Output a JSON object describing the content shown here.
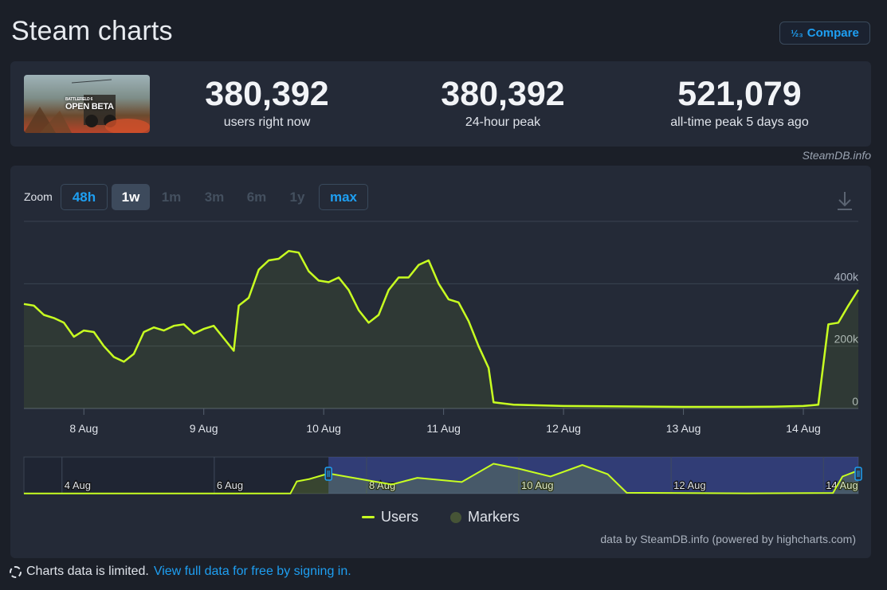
{
  "page": {
    "title": "Steam charts"
  },
  "compare": {
    "label": "Compare",
    "icon": "fraction-icon",
    "icon_glyph": "½₃"
  },
  "game": {
    "thumb_line1": "BATTLEFIELD 6",
    "thumb_line2": "OPEN BETA"
  },
  "stats": [
    {
      "value": "380,392",
      "label": "users right now"
    },
    {
      "value": "380,392",
      "label": "24-hour peak"
    },
    {
      "value": "521,079",
      "label": "all-time peak 5 days ago"
    }
  ],
  "source_credit": "SteamDB.info",
  "zoom": {
    "label": "Zoom",
    "options": [
      "48h",
      "1w",
      "1m",
      "3m",
      "6m",
      "1y",
      "max"
    ],
    "selected": "1w"
  },
  "chart_data": {
    "type": "area",
    "series": [
      {
        "name": "Users",
        "color": "#c8ff21",
        "points": [
          [
            "7 Aug 12:00",
            335000
          ],
          [
            "7 Aug 14:00",
            330000
          ],
          [
            "7 Aug 16:00",
            300000
          ],
          [
            "7 Aug 18:00",
            290000
          ],
          [
            "7 Aug 20:00",
            275000
          ],
          [
            "7 Aug 22:00",
            230000
          ],
          [
            "8 Aug 00:00",
            250000
          ],
          [
            "8 Aug 02:00",
            245000
          ],
          [
            "8 Aug 04:00",
            200000
          ],
          [
            "8 Aug 06:00",
            165000
          ],
          [
            "8 Aug 08:00",
            150000
          ],
          [
            "8 Aug 10:00",
            175000
          ],
          [
            "8 Aug 12:00",
            245000
          ],
          [
            "8 Aug 14:00",
            260000
          ],
          [
            "8 Aug 16:00",
            250000
          ],
          [
            "8 Aug 18:00",
            265000
          ],
          [
            "8 Aug 20:00",
            270000
          ],
          [
            "8 Aug 22:00",
            240000
          ],
          [
            "9 Aug 00:00",
            255000
          ],
          [
            "9 Aug 02:00",
            265000
          ],
          [
            "9 Aug 04:00",
            225000
          ],
          [
            "9 Aug 06:00",
            185000
          ],
          [
            "9 Aug 07:00",
            330000
          ],
          [
            "9 Aug 09:00",
            355000
          ],
          [
            "9 Aug 11:00",
            445000
          ],
          [
            "9 Aug 13:00",
            475000
          ],
          [
            "9 Aug 15:00",
            480000
          ],
          [
            "9 Aug 17:00",
            505000
          ],
          [
            "9 Aug 19:00",
            500000
          ],
          [
            "9 Aug 21:00",
            440000
          ],
          [
            "9 Aug 23:00",
            410000
          ],
          [
            "10 Aug 01:00",
            405000
          ],
          [
            "10 Aug 03:00",
            420000
          ],
          [
            "10 Aug 05:00",
            380000
          ],
          [
            "10 Aug 07:00",
            315000
          ],
          [
            "10 Aug 09:00",
            275000
          ],
          [
            "10 Aug 11:00",
            300000
          ],
          [
            "10 Aug 13:00",
            380000
          ],
          [
            "10 Aug 15:00",
            420000
          ],
          [
            "10 Aug 17:00",
            420000
          ],
          [
            "10 Aug 19:00",
            460000
          ],
          [
            "10 Aug 21:00",
            475000
          ],
          [
            "10 Aug 23:00",
            400000
          ],
          [
            "11 Aug 01:00",
            350000
          ],
          [
            "11 Aug 03:00",
            340000
          ],
          [
            "11 Aug 05:00",
            280000
          ],
          [
            "11 Aug 07:00",
            200000
          ],
          [
            "11 Aug 09:00",
            130000
          ],
          [
            "11 Aug 10:00",
            20000
          ],
          [
            "11 Aug 14:00",
            12000
          ],
          [
            "12 Aug 00:00",
            8000
          ],
          [
            "13 Aug 00:00",
            5000
          ],
          [
            "13 Aug 12:00",
            5000
          ],
          [
            "13 Aug 18:00",
            6000
          ],
          [
            "14 Aug 00:00",
            8000
          ],
          [
            "14 Aug 03:00",
            12000
          ],
          [
            "14 Aug 05:00",
            270000
          ],
          [
            "14 Aug 07:00",
            275000
          ],
          [
            "14 Aug 09:00",
            330000
          ],
          [
            "14 Aug 11:00",
            380392
          ]
        ]
      }
    ],
    "x_ticks": [
      "8 Aug",
      "9 Aug",
      "10 Aug",
      "11 Aug",
      "12 Aug",
      "13 Aug",
      "14 Aug"
    ],
    "y_ticks": [
      "0",
      "200k",
      "400k"
    ],
    "xlim": [
      "7 Aug 12:00",
      "14 Aug 11:00"
    ],
    "ylim": [
      0,
      600000
    ],
    "grid": true,
    "navigator": {
      "ticks": [
        "4 Aug",
        "6 Aug",
        "8 Aug",
        "10 Aug",
        "12 Aug",
        "14 Aug"
      ],
      "points": [
        [
          "3 Aug 12:00",
          2000
        ],
        [
          "5 Aug 00:00",
          4000
        ],
        [
          "6 Aug 12:00",
          3000
        ],
        [
          "7 Aug 00:00",
          2000
        ],
        [
          "7 Aug 02:00",
          200000
        ],
        [
          "7 Aug 06:00",
          240000
        ],
        [
          "7 Aug 12:00",
          330000
        ],
        [
          "7 Aug 22:00",
          240000
        ],
        [
          "8 Aug 08:00",
          150000
        ],
        [
          "8 Aug 16:00",
          260000
        ],
        [
          "9 Aug 06:00",
          190000
        ],
        [
          "9 Aug 16:00",
          490000
        ],
        [
          "10 Aug 00:00",
          410000
        ],
        [
          "10 Aug 10:00",
          280000
        ],
        [
          "10 Aug 20:00",
          470000
        ],
        [
          "11 Aug 04:00",
          320000
        ],
        [
          "11 Aug 10:00",
          15000
        ],
        [
          "13 Aug 00:00",
          5000
        ],
        [
          "14 Aug 03:00",
          12000
        ],
        [
          "14 Aug 06:00",
          280000
        ],
        [
          "14 Aug 11:00",
          380392
        ]
      ]
    }
  },
  "legend": {
    "users": "Users",
    "markers": "Markers"
  },
  "credits": "data by SteamDB.info (powered by highcharts.com)",
  "footer": {
    "text": "Charts data is limited.",
    "link": "View full data for free by signing in."
  }
}
